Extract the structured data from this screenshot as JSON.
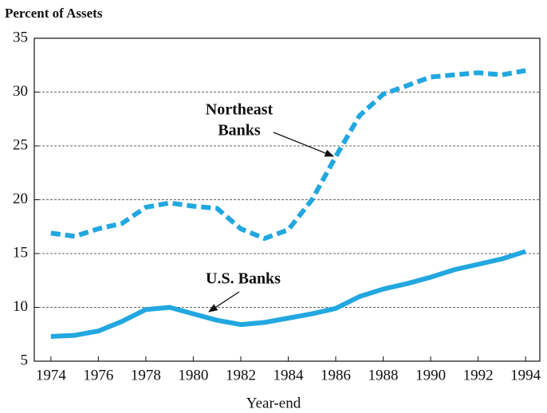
{
  "chart_data": {
    "type": "line",
    "title": "Percent of Assets",
    "x_label": "Year-end",
    "annotations": [
      "Northeast",
      "Banks",
      "U.S. Banks"
    ],
    "x": [
      1974,
      1975,
      1976,
      1977,
      1978,
      1979,
      1980,
      1981,
      1982,
      1983,
      1984,
      1985,
      1986,
      1987,
      1988,
      1989,
      1990,
      1991,
      1992,
      1993,
      1994
    ],
    "series": [
      {
        "color": "#22a7e0",
        "dashed": true,
        "values": [
          16.9,
          16.6,
          17.3,
          17.8,
          19.3,
          19.7,
          19.4,
          19.2,
          17.3,
          16.4,
          17.2,
          20.0,
          24.0,
          27.8,
          29.8,
          30.6,
          31.4,
          31.6,
          31.8,
          31.6,
          32.0
        ]
      },
      {
        "color": "#22a7e0",
        "dashed": false,
        "values": [
          7.3,
          7.4,
          7.8,
          8.7,
          9.8,
          10.0,
          9.4,
          8.8,
          8.4,
          8.6,
          9.0,
          9.4,
          9.9,
          11.0,
          11.7,
          12.2,
          12.8,
          13.5,
          14.0,
          14.5,
          15.2
        ]
      }
    ],
    "xlim": [
      1973.3,
      1994.6
    ],
    "xticks": [
      1974,
      1976,
      1978,
      1980,
      1982,
      1984,
      1986,
      1988,
      1990,
      1992,
      1994
    ],
    "ylim": [
      5,
      35
    ],
    "yticks": [
      5,
      10,
      15,
      20,
      25,
      30,
      35
    ],
    "grid": true
  }
}
